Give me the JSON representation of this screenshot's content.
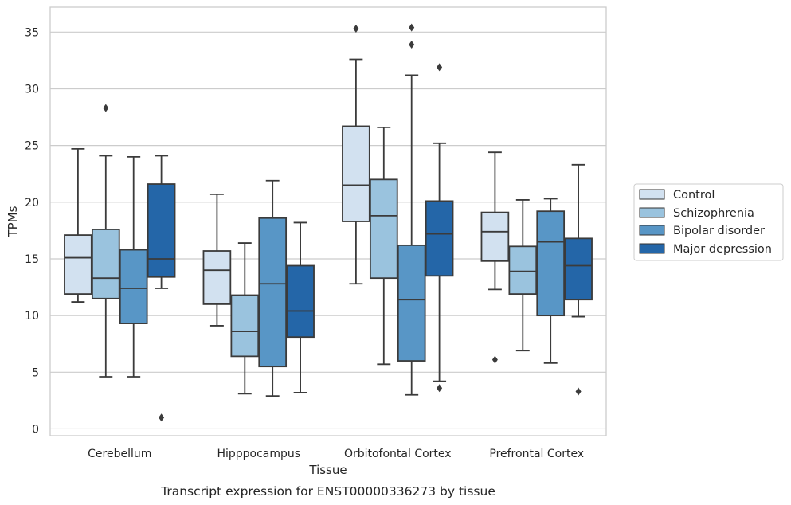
{
  "chart_data": {
    "type": "boxplot",
    "caption": "Transcript expression for ENST00000336273 by tissue",
    "xlabel": "Tissue",
    "ylabel": "TPMs",
    "ylim": [
      -0.6,
      37.2
    ],
    "yticks": [
      0,
      5,
      10,
      15,
      20,
      25,
      30,
      35
    ],
    "grid": "horizontal",
    "legend_position": "right",
    "categories": [
      "Cerebellum",
      "Hipppocampus",
      "Orbitofontal Cortex",
      "Prefrontal Cortex"
    ],
    "series": [
      {
        "name": "Control",
        "color": "#d2e1f0",
        "boxes": [
          {
            "whislo": 11.2,
            "q1": 11.9,
            "med": 15.1,
            "q3": 17.1,
            "whishi": 24.7,
            "fliers": []
          },
          {
            "whislo": 9.1,
            "q1": 11.0,
            "med": 14.0,
            "q3": 15.7,
            "whishi": 20.7,
            "fliers": []
          },
          {
            "whislo": 12.8,
            "q1": 18.3,
            "med": 21.5,
            "q3": 26.7,
            "whishi": 32.6,
            "fliers": [
              35.3
            ]
          },
          {
            "whislo": 12.3,
            "q1": 14.8,
            "med": 17.4,
            "q3": 19.1,
            "whishi": 24.4,
            "fliers": [
              6.1
            ]
          }
        ]
      },
      {
        "name": "Schizophrenia",
        "color": "#9ac3de",
        "boxes": [
          {
            "whislo": 4.6,
            "q1": 11.5,
            "med": 13.3,
            "q3": 17.6,
            "whishi": 24.1,
            "fliers": [
              28.3
            ]
          },
          {
            "whislo": 3.1,
            "q1": 6.4,
            "med": 8.6,
            "q3": 11.8,
            "whishi": 16.4,
            "fliers": []
          },
          {
            "whislo": 5.7,
            "q1": 13.3,
            "med": 18.8,
            "q3": 22.0,
            "whishi": 26.6,
            "fliers": []
          },
          {
            "whislo": 6.9,
            "q1": 11.9,
            "med": 13.9,
            "q3": 16.1,
            "whishi": 20.2,
            "fliers": []
          }
        ]
      },
      {
        "name": "Bipolar disorder",
        "color": "#5896c6",
        "boxes": [
          {
            "whislo": 4.6,
            "q1": 9.3,
            "med": 12.4,
            "q3": 15.8,
            "whishi": 24.0,
            "fliers": []
          },
          {
            "whislo": 2.9,
            "q1": 5.5,
            "med": 12.8,
            "q3": 18.6,
            "whishi": 21.9,
            "fliers": []
          },
          {
            "whislo": 3.0,
            "q1": 6.0,
            "med": 11.4,
            "q3": 16.2,
            "whishi": 31.2,
            "fliers": [
              33.9,
              35.4
            ]
          },
          {
            "whislo": 5.8,
            "q1": 10.0,
            "med": 16.5,
            "q3": 19.2,
            "whishi": 20.3,
            "fliers": []
          }
        ]
      },
      {
        "name": "Major depression",
        "color": "#2466a8",
        "boxes": [
          {
            "whislo": 12.4,
            "q1": 13.4,
            "med": 15.0,
            "q3": 21.6,
            "whishi": 24.1,
            "fliers": [
              1.0
            ]
          },
          {
            "whislo": 3.2,
            "q1": 8.1,
            "med": 10.4,
            "q3": 14.4,
            "whishi": 18.2,
            "fliers": []
          },
          {
            "whislo": 4.2,
            "q1": 13.5,
            "med": 17.2,
            "q3": 20.1,
            "whishi": 25.2,
            "fliers": [
              3.6,
              31.9
            ]
          },
          {
            "whislo": 9.9,
            "q1": 11.4,
            "med": 14.4,
            "q3": 16.8,
            "whishi": 23.3,
            "fliers": [
              3.3
            ]
          }
        ]
      }
    ]
  }
}
